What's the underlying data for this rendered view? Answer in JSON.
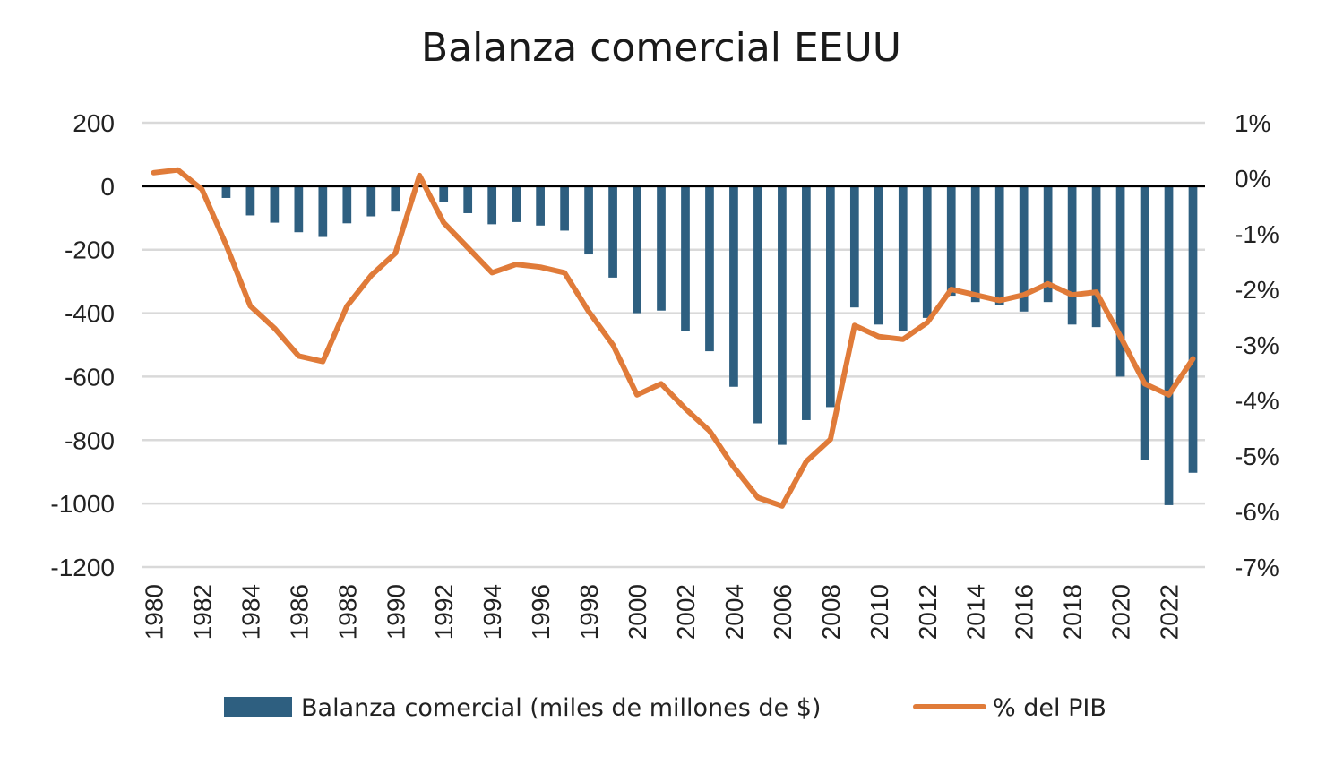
{
  "chart_data": {
    "type": "bar",
    "title": "Balanza comercial EEUU",
    "x": [
      1980,
      1981,
      1982,
      1983,
      1984,
      1985,
      1986,
      1987,
      1988,
      1989,
      1990,
      1991,
      1992,
      1993,
      1994,
      1995,
      1996,
      1997,
      1998,
      1999,
      2000,
      2001,
      2002,
      2003,
      2004,
      2005,
      2006,
      2007,
      2008,
      2009,
      2010,
      2011,
      2012,
      2013,
      2014,
      2015,
      2016,
      2017,
      2018,
      2019,
      2020,
      2021,
      2022,
      2023
    ],
    "x_tick_labels": [
      "1980",
      "1982",
      "1984",
      "1986",
      "1988",
      "1990",
      "1992",
      "1994",
      "1996",
      "1998",
      "2000",
      "2002",
      "2004",
      "2006",
      "2008",
      "2010",
      "2012",
      "2014",
      "2016",
      "2018",
      "2020",
      "2022"
    ],
    "series": [
      {
        "name": "Balanza comercial (miles de millones de $)",
        "type": "bar",
        "axis": "left",
        "color": "#2e5f80",
        "values": [
          0,
          0,
          0,
          -37,
          -92,
          -115,
          -145,
          -160,
          -117,
          -95,
          -80,
          -3,
          -50,
          -85,
          -120,
          -113,
          -124,
          -140,
          -215,
          -288,
          -400,
          -392,
          -455,
          -520,
          -632,
          -747,
          -815,
          -737,
          -696,
          -382,
          -436,
          -456,
          -415,
          -345,
          -365,
          -375,
          -395,
          -365,
          -436,
          -444,
          -600,
          -863,
          -1005,
          -903
        ]
      },
      {
        "name": "% del PIB",
        "type": "line",
        "axis": "right",
        "color": "#e07b39",
        "values": [
          0.1,
          0.15,
          -0.2,
          -1.2,
          -2.3,
          -2.7,
          -3.2,
          -3.3,
          -2.3,
          -1.75,
          -1.35,
          0.05,
          -0.8,
          -1.25,
          -1.7,
          -1.55,
          -1.6,
          -1.7,
          -2.4,
          -3.0,
          -3.9,
          -3.7,
          -4.15,
          -4.55,
          -5.2,
          -5.75,
          -5.9,
          -5.1,
          -4.7,
          -2.65,
          -2.85,
          -2.9,
          -2.6,
          -2.0,
          -2.1,
          -2.2,
          -2.1,
          -1.9,
          -2.1,
          -2.05,
          -2.85,
          -3.7,
          -3.9,
          -3.25
        ]
      }
    ],
    "y_left": {
      "min": -1200,
      "max": 200,
      "ticks": [
        200,
        0,
        -200,
        -400,
        -600,
        -800,
        -1000,
        -1200
      ]
    },
    "y_right": {
      "min": -7,
      "max": 1,
      "ticks": [
        1,
        0,
        -1,
        -2,
        -3,
        -4,
        -5,
        -6,
        -7
      ],
      "tick_labels": [
        "1%",
        "0%",
        "-1%",
        "-2%",
        "-3%",
        "-4%",
        "-5%",
        "-6%",
        "-7%"
      ]
    },
    "grid": true,
    "legend_position": "bottom"
  }
}
